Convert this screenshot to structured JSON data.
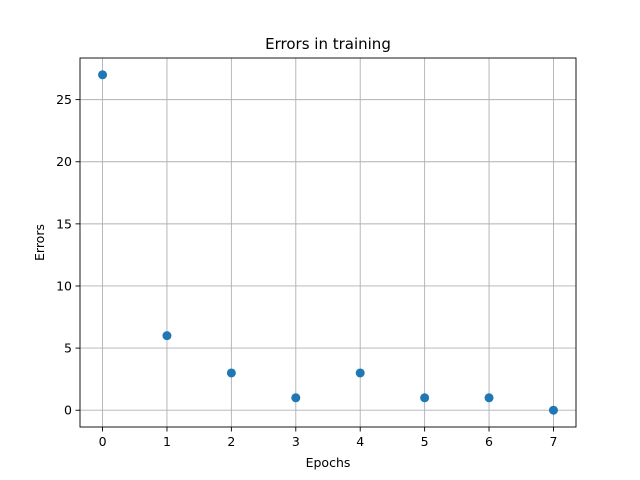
{
  "chart_data": {
    "type": "scatter",
    "title": "Errors in training",
    "xlabel": "Epochs",
    "ylabel": "Errors",
    "x": [
      0,
      1,
      2,
      3,
      4,
      5,
      6,
      7
    ],
    "y": [
      27,
      6,
      3,
      1,
      3,
      1,
      1,
      0
    ],
    "xlim": [
      -0.35,
      7.35
    ],
    "ylim": [
      -1.35,
      28.35
    ],
    "xticks": [
      "0",
      "1",
      "2",
      "3",
      "4",
      "5",
      "6",
      "7"
    ],
    "yticks": [
      "0",
      "5",
      "10",
      "15",
      "20",
      "25"
    ],
    "grid": true,
    "legend": "none",
    "marker_color": "#1f77b4"
  }
}
